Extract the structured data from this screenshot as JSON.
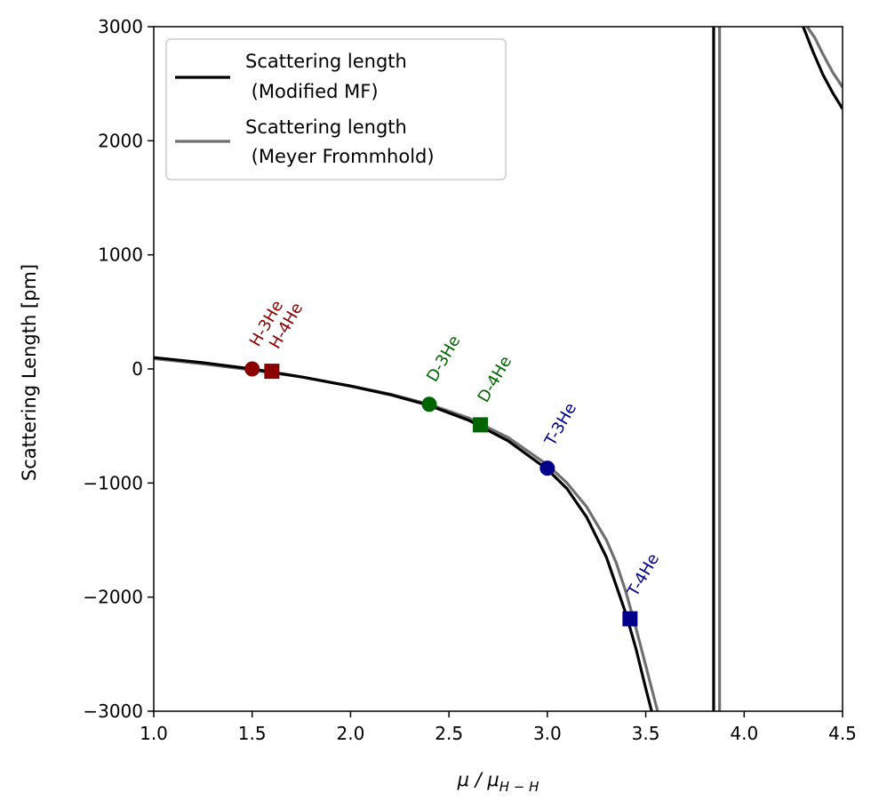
{
  "chart_data": {
    "type": "line",
    "title": "",
    "xlabel": "μ / μ_{H−H}",
    "xlabel_parts": {
      "main": "μ / μ",
      "sub": "H − H"
    },
    "ylabel": "Scattering Length [pm]",
    "xlim": [
      1.0,
      4.5
    ],
    "ylim": [
      -3000,
      3000
    ],
    "x_ticks": [
      1.0,
      1.5,
      2.0,
      2.5,
      3.0,
      3.5,
      4.0,
      4.5
    ],
    "x_tick_labels": [
      "1.0",
      "1.5",
      "2.0",
      "2.5",
      "3.0",
      "3.5",
      "4.0",
      "4.5"
    ],
    "y_ticks": [
      3000,
      2000,
      1000,
      0,
      -1000,
      -2000,
      -3000
    ],
    "y_tick_labels": [
      "3000",
      "2000",
      "1000",
      "0",
      "−1000",
      "−2000",
      "−3000"
    ],
    "grid": false,
    "legend_position": "top-left",
    "series": [
      {
        "name": "Scattering length\n (Modified MF)",
        "legend_lines": [
          "Scattering length",
          " (Modified MF)"
        ],
        "color": "#000000",
        "branches": [
          {
            "x": [
              1.0,
              1.25,
              1.5,
              1.75,
              2.0,
              2.2,
              2.4,
              2.6,
              2.8,
              3.0,
              3.1,
              3.2,
              3.3,
              3.35,
              3.4,
              3.45,
              3.5,
              3.53
            ],
            "y": [
              100,
              55,
              0,
              -70,
              -150,
              -225,
              -320,
              -450,
              -630,
              -880,
              -1050,
              -1300,
              -1650,
              -1900,
              -2150,
              -2450,
              -2800,
              -3000
            ]
          },
          {
            "x": [
              3.845,
              3.845
            ],
            "y": [
              -3000,
              3000
            ]
          },
          {
            "x": [
              4.3,
              4.35,
              4.4,
              4.45,
              4.5
            ],
            "y": [
              3000,
              2780,
              2580,
              2420,
              2280
            ]
          }
        ]
      },
      {
        "name": "Scattering length\n (Meyer Frommhold)",
        "legend_lines": [
          "Scattering length",
          " (Meyer Frommhold)"
        ],
        "color": "#707070",
        "branches": [
          {
            "x": [
              1.0,
              1.25,
              1.5,
              1.75,
              2.0,
              2.2,
              2.4,
              2.6,
              2.8,
              3.0,
              3.1,
              3.2,
              3.3,
              3.35,
              3.4,
              3.45,
              3.5,
              3.56
            ],
            "y": [
              90,
              45,
              -10,
              -70,
              -150,
              -220,
              -310,
              -430,
              -600,
              -840,
              -1000,
              -1210,
              -1500,
              -1700,
              -1960,
              -2270,
              -2600,
              -3000
            ]
          },
          {
            "x": [
              3.875,
              3.875
            ],
            "y": [
              -3000,
              3000
            ]
          },
          {
            "x": [
              4.32,
              4.36,
              4.4,
              4.45,
              4.5
            ],
            "y": [
              3000,
              2900,
              2760,
              2600,
              2470
            ]
          }
        ]
      }
    ],
    "points": [
      {
        "label": "H-3He",
        "x": 1.5,
        "y": 0,
        "marker": "circle",
        "color": "#8b0000"
      },
      {
        "label": "H-4He",
        "x": 1.6,
        "y": -20,
        "marker": "square",
        "color": "#8b0000"
      },
      {
        "label": "D-3He",
        "x": 2.4,
        "y": -310,
        "marker": "circle",
        "color": "#006400"
      },
      {
        "label": "D-4He",
        "x": 2.66,
        "y": -490,
        "marker": "square",
        "color": "#006400"
      },
      {
        "label": "T-3He",
        "x": 3.0,
        "y": -870,
        "marker": "circle",
        "color": "#00008b"
      },
      {
        "label": "T-4He",
        "x": 3.42,
        "y": -2190,
        "marker": "square",
        "color": "#00008b"
      }
    ]
  }
}
